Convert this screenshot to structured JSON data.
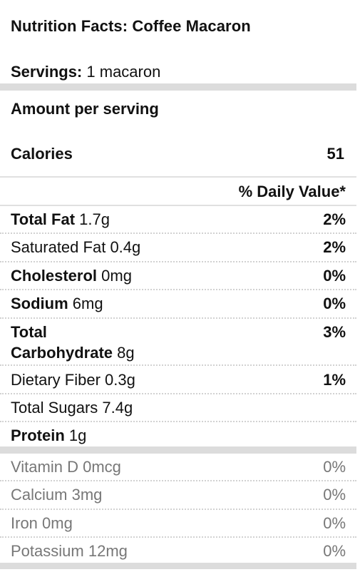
{
  "title": "Nutrition Facts: Coffee Macaron",
  "servings": {
    "label": "Servings:",
    "value": "1 macaron"
  },
  "amount_per_serving": "Amount per serving",
  "calories": {
    "label": "Calories",
    "value": "51"
  },
  "daily_value_header": "% Daily Value*",
  "nutrients": [
    {
      "name": "Total Fat",
      "amount": "1.7g",
      "dv": "2%"
    },
    {
      "name": "Saturated Fat",
      "amount": "0.4g",
      "dv": "2%"
    },
    {
      "name": "Cholesterol",
      "amount": "0mg",
      "dv": "0%"
    },
    {
      "name": "Sodium",
      "amount": "6mg",
      "dv": "0%"
    },
    {
      "name_line1": "Total",
      "name_line2": "Carbohydrate",
      "amount": "8g",
      "dv": "3%"
    },
    {
      "name": "Dietary Fiber",
      "amount": "0.3g",
      "dv": "1%"
    },
    {
      "name": "Total Sugars",
      "amount": "7.4g",
      "dv": ""
    },
    {
      "name": "Protein",
      "amount": "1g",
      "dv": ""
    }
  ],
  "vitamins": [
    {
      "name": "Vitamin D",
      "amount": "0mcg",
      "dv": "0%"
    },
    {
      "name": "Calcium",
      "amount": "3mg",
      "dv": "0%"
    },
    {
      "name": "Iron",
      "amount": "0mg",
      "dv": "0%"
    },
    {
      "name": "Potassium",
      "amount": "12mg",
      "dv": "0%"
    }
  ]
}
